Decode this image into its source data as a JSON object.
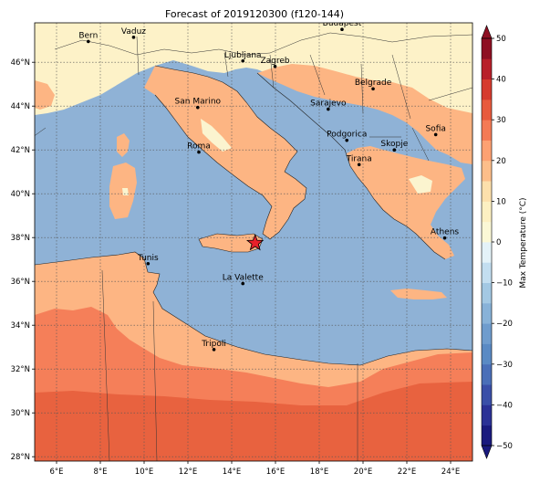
{
  "title": "Forecast of 2019120300 (f120-144)",
  "extent": {
    "lon_min": 5.0,
    "lon_max": 25.0,
    "lat_min": 27.8,
    "lat_max": 47.8
  },
  "x_ticks": [
    {
      "lon": 6,
      "label": "6°E"
    },
    {
      "lon": 8,
      "label": "8°E"
    },
    {
      "lon": 10,
      "label": "10°E"
    },
    {
      "lon": 12,
      "label": "12°E"
    },
    {
      "lon": 14,
      "label": "14°E"
    },
    {
      "lon": 16,
      "label": "16°E"
    },
    {
      "lon": 18,
      "label": "18°E"
    },
    {
      "lon": 20,
      "label": "20°E"
    },
    {
      "lon": 22,
      "label": "22°E"
    },
    {
      "lon": 24,
      "label": "24°E"
    }
  ],
  "y_ticks": [
    {
      "lat": 28,
      "label": "28°N"
    },
    {
      "lat": 30,
      "label": "30°N"
    },
    {
      "lat": 32,
      "label": "32°N"
    },
    {
      "lat": 34,
      "label": "34°N"
    },
    {
      "lat": 36,
      "label": "36°N"
    },
    {
      "lat": 38,
      "label": "38°N"
    },
    {
      "lat": 40,
      "label": "40°N"
    },
    {
      "lat": 42,
      "label": "42°N"
    },
    {
      "lat": 44,
      "label": "44°N"
    },
    {
      "lat": 46,
      "label": "46°N"
    }
  ],
  "cities": [
    {
      "name": "Bern",
      "lon": 7.45,
      "lat": 46.95
    },
    {
      "name": "Vaduz",
      "lon": 9.52,
      "lat": 47.14
    },
    {
      "name": "Ljubljana",
      "lon": 14.51,
      "lat": 46.06
    },
    {
      "name": "Zagreb",
      "lon": 15.98,
      "lat": 45.81
    },
    {
      "name": "Budapest",
      "lon": 19.04,
      "lat": 47.5
    },
    {
      "name": "San Marino",
      "lon": 12.45,
      "lat": 43.94
    },
    {
      "name": "Belgrade",
      "lon": 20.46,
      "lat": 44.79
    },
    {
      "name": "Sarajevo",
      "lon": 18.41,
      "lat": 43.86
    },
    {
      "name": "Roma",
      "lon": 12.5,
      "lat": 41.9
    },
    {
      "name": "Podgorica",
      "lon": 19.26,
      "lat": 42.44
    },
    {
      "name": "Skopje",
      "lon": 21.43,
      "lat": 42.0
    },
    {
      "name": "Sofia",
      "lon": 23.32,
      "lat": 42.7
    },
    {
      "name": "Tirana",
      "lon": 19.82,
      "lat": 41.33
    },
    {
      "name": "Athens",
      "lon": 23.73,
      "lat": 37.98
    },
    {
      "name": "Tunis",
      "lon": 10.18,
      "lat": 36.81
    },
    {
      "name": "La Valette",
      "lon": 14.51,
      "lat": 35.9
    },
    {
      "name": "Tripoli",
      "lon": 13.19,
      "lat": 32.89
    }
  ],
  "marker": {
    "lon": 15.07,
    "lat": 37.75,
    "color": "#e8202a"
  },
  "colorbar": {
    "label": "Max Temperature (°C)",
    "min": -50,
    "max": 50,
    "ticks": [
      -50,
      -40,
      -30,
      -20,
      -10,
      0,
      10,
      20,
      30,
      40,
      50
    ],
    "tick_labels": [
      "−50",
      "−40",
      "−30",
      "−20",
      "−10",
      "0",
      "10",
      "20",
      "30",
      "40",
      "50"
    ],
    "bands": [
      {
        "from": -50,
        "to": -45,
        "color": "#1a1a7e"
      },
      {
        "from": -45,
        "to": -40,
        "color": "#2b3196"
      },
      {
        "from": -40,
        "to": -35,
        "color": "#3a4fa8"
      },
      {
        "from": -35,
        "to": -30,
        "color": "#4a6fb8"
      },
      {
        "from": -30,
        "to": -25,
        "color": "#5a8ac4"
      },
      {
        "from": -25,
        "to": -20,
        "color": "#6f9ccd"
      },
      {
        "from": -20,
        "to": -15,
        "color": "#88b2d8"
      },
      {
        "from": -15,
        "to": -10,
        "color": "#a3c8e3"
      },
      {
        "from": -10,
        "to": -5,
        "color": "#c3def0"
      },
      {
        "from": -5,
        "to": 0,
        "color": "#e4f2f8"
      },
      {
        "from": 0,
        "to": 5,
        "color": "#fbf8d6"
      },
      {
        "from": 5,
        "to": 10,
        "color": "#fdf0c2"
      },
      {
        "from": 10,
        "to": 15,
        "color": "#fde0ac"
      },
      {
        "from": 15,
        "to": 20,
        "color": "#fdbe8a"
      },
      {
        "from": 20,
        "to": 25,
        "color": "#fda172"
      },
      {
        "from": 25,
        "to": 30,
        "color": "#f47a55"
      },
      {
        "from": 30,
        "to": 35,
        "color": "#e85a3d"
      },
      {
        "from": 35,
        "to": 40,
        "color": "#d63b2e"
      },
      {
        "from": 40,
        "to": 45,
        "color": "#b81f2a"
      },
      {
        "from": 45,
        "to": 50,
        "color": "#8e0f22"
      }
    ]
  },
  "colors": {
    "sea": "#8fb2d6",
    "cool_land": "#fdf2c8",
    "mild_land": "#fdb583",
    "warm_land": "#f57f59",
    "hot_land": "#e8623f",
    "pale_patch": "#fbf4cf"
  }
}
